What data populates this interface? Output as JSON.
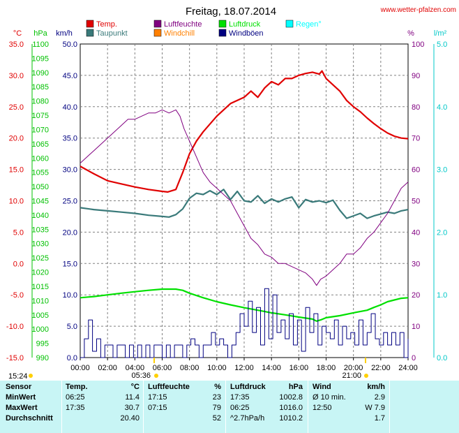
{
  "title": "Freitag, 18.07.2014",
  "source": "www.wetter-pfalzen.com",
  "colors": {
    "temp": "#e00000",
    "taupunkt": "#3a7a7a",
    "luftfeuchte": "#800080",
    "windchill": "#ff8000",
    "luftdruck": "#00e000",
    "windboeen": "#000080",
    "regen": "#00ffff",
    "axis_temp": "#e00000",
    "axis_druck": "#00c000",
    "axis_wind": "#000080",
    "axis_humid": "#800080",
    "axis_rain": "#00c8c8",
    "grid": "#808080"
  },
  "legend": [
    {
      "label": "Temp.",
      "color": "#e00000"
    },
    {
      "label": "Luftfeuchte",
      "color": "#800080"
    },
    {
      "label": "Luftdruck",
      "color": "#00e000"
    },
    {
      "label": "Regen°",
      "color": "#00ffff"
    },
    {
      "label": "Taupunkt",
      "color": "#3a7a7a"
    },
    {
      "label": "Windchill",
      "color": "#ff8000"
    },
    {
      "label": "Windböen",
      "color": "#000080"
    }
  ],
  "axis_units": {
    "temp": "°C",
    "druck": "hPa",
    "wind": "km/h",
    "humid": "%",
    "rain": "l/m²"
  },
  "chart_data": {
    "type": "line",
    "title": "Freitag, 18.07.2014",
    "x_ticks": [
      "00:00",
      "02:00",
      "04:00",
      "06:00",
      "08:00",
      "10:00",
      "12:00",
      "14:00",
      "16:00",
      "18:00",
      "20:00",
      "22:00",
      "24:00"
    ],
    "x_range_hours": [
      0,
      24
    ],
    "axes": {
      "temp": {
        "unit": "°C",
        "range": [
          -15,
          35
        ],
        "ticks": [
          "35.0",
          "30.0",
          "25.0",
          "20.0",
          "15.0",
          "10.0",
          "5.0",
          "0.0",
          "-5.0",
          "-10.0",
          "-15.0"
        ]
      },
      "druck": {
        "unit": "hPa",
        "range": [
          990,
          1100
        ],
        "ticks": [
          "1100",
          "1095",
          "1090",
          "1085",
          "1080",
          "1075",
          "1070",
          "1065",
          "1060",
          "1055",
          "1050",
          "1045",
          "1040",
          "1035",
          "1030",
          "1025",
          "1020",
          "1015",
          "1010",
          "1005",
          "1000",
          "995",
          "990"
        ]
      },
      "wind": {
        "unit": "km/h",
        "range": [
          0,
          50
        ],
        "ticks": [
          "50.0",
          "45.0",
          "40.0",
          "35.0",
          "30.0",
          "25.0",
          "20.0",
          "15.0",
          "10.0",
          "5.0",
          "0.0"
        ]
      },
      "humid": {
        "unit": "%",
        "range": [
          0,
          100
        ],
        "ticks": [
          "100",
          "90",
          "80",
          "70",
          "60",
          "50",
          "40",
          "30",
          "20",
          "10",
          "0"
        ]
      },
      "rain": {
        "unit": "l/m²",
        "range": [
          0,
          5
        ],
        "ticks": [
          "5.0",
          "4.0",
          "3.0",
          "2.0",
          "1.0",
          "0.0"
        ]
      }
    },
    "series": [
      {
        "name": "Temp.",
        "axis": "temp",
        "color": "#e00000",
        "x": [
          0,
          1,
          2,
          3,
          4,
          5,
          6,
          6.4,
          7,
          7.5,
          8,
          8.5,
          9,
          10,
          11,
          12,
          12.5,
          13,
          13.5,
          14,
          14.5,
          15,
          15.5,
          16,
          16.5,
          17,
          17.5,
          17.7,
          18,
          18.5,
          19,
          19.5,
          20,
          20.5,
          21,
          21.5,
          22,
          22.5,
          23,
          23.5,
          24
        ],
        "y": [
          15.5,
          14.3,
          13.2,
          12.7,
          12.2,
          11.8,
          11.5,
          11.4,
          11.8,
          14.5,
          17.5,
          19.5,
          21.0,
          23.5,
          25.5,
          26.5,
          27.5,
          26.5,
          28,
          29,
          28.5,
          29.5,
          29.5,
          30.0,
          30.3,
          30.5,
          30.2,
          30.7,
          29.5,
          28.5,
          27.5,
          26.0,
          25.0,
          24.2,
          23.2,
          22.3,
          21.5,
          20.8,
          20.3,
          20.0,
          19.9
        ]
      },
      {
        "name": "Taupunkt",
        "axis": "temp",
        "color": "#3a7a7a",
        "x": [
          0,
          1,
          2,
          3,
          4,
          5,
          6,
          6.5,
          7,
          7.5,
          8,
          8.5,
          9,
          9.5,
          10,
          10.5,
          11,
          11.5,
          12,
          12.5,
          13,
          13.5,
          14,
          14.5,
          15,
          15.5,
          16,
          16.5,
          17,
          17.5,
          18,
          18.5,
          19,
          19.5,
          20,
          20.5,
          21,
          21.5,
          22,
          22.5,
          23,
          23.5,
          24
        ],
        "y": [
          8.9,
          8.6,
          8.4,
          8.2,
          8.0,
          7.7,
          7.5,
          7.4,
          7.8,
          8.7,
          10.4,
          11.2,
          11.0,
          11.6,
          11.0,
          11.8,
          10.2,
          11.5,
          10.0,
          9.8,
          10.8,
          9.6,
          10.3,
          9.8,
          10.3,
          10.6,
          8.9,
          10.2,
          9.8,
          10.0,
          9.7,
          10.1,
          8.5,
          7.2,
          7.6,
          8.0,
          7.2,
          7.6,
          7.9,
          8.2,
          8.0,
          8.4,
          8.6
        ]
      },
      {
        "name": "Luftfeuchte",
        "axis": "humid",
        "color": "#800080",
        "x": [
          0,
          0.5,
          1,
          2,
          2.5,
          3,
          3.5,
          4,
          4.5,
          5,
          5.5,
          6,
          6.5,
          7,
          7.3,
          7.6,
          8,
          8.5,
          9,
          9.5,
          10,
          10.5,
          11,
          11.5,
          12,
          12.5,
          13,
          13.5,
          14,
          14.5,
          15,
          15.5,
          16,
          16.5,
          17,
          17.3,
          17.6,
          18,
          18.5,
          19,
          19.5,
          20,
          20.5,
          21,
          21.5,
          22,
          22.5,
          23,
          23.5,
          24
        ],
        "y": [
          62,
          64,
          66,
          70,
          72,
          74,
          76,
          76,
          77,
          78,
          78,
          79,
          78,
          79,
          77,
          73,
          69,
          64,
          59,
          56,
          54,
          52,
          50,
          46,
          42,
          38,
          36,
          33,
          32,
          30,
          30,
          29,
          28,
          27,
          25,
          23,
          25,
          26,
          28,
          30,
          33,
          33,
          35,
          38,
          40,
          43,
          46,
          50,
          54,
          56
        ]
      },
      {
        "name": "Luftdruck",
        "axis": "druck",
        "color": "#00e000",
        "x": [
          0,
          1,
          2,
          3,
          4,
          5,
          6,
          7,
          7.5,
          8,
          9,
          10,
          11,
          12,
          13,
          14,
          15,
          16,
          17,
          17.3,
          17.6,
          18,
          19,
          20,
          21,
          21.5,
          22,
          22.5,
          23,
          23.5,
          24
        ],
        "y": [
          1011.0,
          1011.4,
          1012.0,
          1012.6,
          1013.1,
          1013.6,
          1014.0,
          1014.0,
          1013.6,
          1012.6,
          1011.0,
          1009.6,
          1008.5,
          1007.5,
          1006.6,
          1005.7,
          1005.0,
          1004.2,
          1003.5,
          1002.8,
          1003.2,
          1004.0,
          1004.7,
          1005.7,
          1006.6,
          1007.6,
          1008.5,
          1009.6,
          1010.2,
          1010.8,
          1011.0
        ]
      },
      {
        "name": "Windböen",
        "axis": "wind",
        "color": "#000080",
        "x": [
          0,
          0.3,
          0.6,
          0.9,
          1.2,
          1.5,
          1.8,
          2.1,
          2.4,
          2.7,
          3,
          3.3,
          3.6,
          3.9,
          4.2,
          4.5,
          4.8,
          5.1,
          5.4,
          5.7,
          6,
          6.3,
          6.6,
          6.9,
          7.2,
          7.5,
          7.8,
          8.1,
          8.4,
          8.7,
          9,
          9.3,
          9.6,
          9.9,
          10.2,
          10.5,
          10.8,
          11.1,
          11.4,
          11.7,
          12,
          12.3,
          12.6,
          12.9,
          13.2,
          13.5,
          13.8,
          14.1,
          14.4,
          14.7,
          15,
          15.3,
          15.6,
          15.9,
          16.2,
          16.5,
          16.8,
          17.1,
          17.4,
          17.7,
          18,
          18.3,
          18.6,
          18.9,
          19.2,
          19.5,
          19.8,
          20.1,
          20.4,
          20.7,
          21,
          21.3,
          21.6,
          21.9,
          22.2,
          22.5,
          22.8,
          23.1,
          23.4,
          23.7,
          24
        ],
        "y": [
          0,
          3,
          6,
          1,
          3,
          0,
          2,
          2,
          0,
          2,
          2,
          0,
          2,
          0,
          2,
          0,
          2,
          0,
          2,
          2,
          0,
          2,
          0,
          2,
          2,
          0,
          2,
          3,
          2,
          0,
          2,
          2,
          4,
          2,
          3,
          2,
          0,
          2,
          4,
          7,
          5,
          9,
          4,
          8,
          2,
          11,
          3,
          10,
          4,
          6,
          3,
          7,
          2,
          6,
          1,
          8,
          4,
          7,
          2,
          5,
          4,
          3,
          6,
          2,
          5,
          3,
          4,
          2,
          6,
          2,
          4,
          7,
          3,
          2,
          4,
          2,
          4,
          2,
          4,
          0,
          3
        ]
      }
    ]
  },
  "markers": [
    {
      "label": "15:24"
    },
    {
      "label": "05:36"
    },
    {
      "label": "21:00"
    }
  ],
  "table": {
    "headers": [
      "Sensor",
      "Temp.",
      "°C",
      "Luftfeuchte",
      "%",
      "Luftdruck",
      "hPa",
      "Wind",
      "km/h"
    ],
    "rows": [
      [
        "MinWert",
        "06:25",
        "11.4",
        "17:15",
        "23",
        "17:35",
        "1002.8",
        "Ø 10 min.",
        "2.9"
      ],
      [
        "MaxWert",
        "17:35",
        "30.7",
        "07:15",
        "79",
        "06:25",
        "1016.0",
        "12:50",
        "W 7.9"
      ],
      [
        "Durchschnitt",
        "",
        "20.40",
        "",
        "52",
        "^2.7hPa/h",
        "1010.2",
        "",
        "1.7"
      ]
    ]
  }
}
